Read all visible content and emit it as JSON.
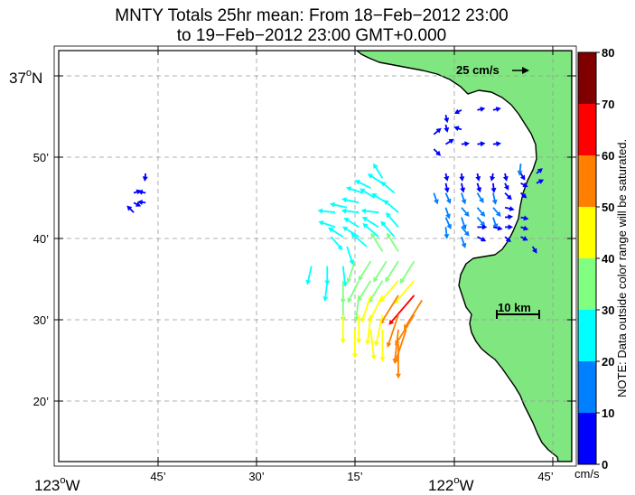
{
  "title_line1": "MNTY Totals 25hr mean: From 18−Feb−2012 23:00",
  "title_line2": "to 19−Feb−2012 23:00 GMT+0.000",
  "reference_vector_label": "25 cm/s",
  "scale_bar_label": "10 km",
  "colorbar": {
    "ticks": [
      "0",
      "10",
      "20",
      "30",
      "40",
      "50",
      "60",
      "70",
      "80"
    ],
    "unit": "cm/s",
    "note": "NOTE: Data outside color range will be saturated.",
    "colors": [
      "#0000ff",
      "#0080ff",
      "#00ffff",
      "#80ff80",
      "#ffff00",
      "#ff8000",
      "#ff0000",
      "#800000"
    ]
  },
  "y_axis_labels": {
    "lat37": "37",
    "deg": "o",
    "north": "N",
    "min50": "50’",
    "min40": "40’",
    "min30": "30’",
    "min20": "20’"
  },
  "x_axis_labels": {
    "lon123": "123",
    "deg": "o",
    "west": "W",
    "min45": "45’",
    "min30": "30’",
    "min15": "15’",
    "lon122": "122",
    "min45b": "45’"
  },
  "colors": {
    "land": "#80e680",
    "coast": "#000000",
    "grid": "#999999"
  },
  "chart_data": {
    "type": "vector-field",
    "x_unit": "longitude (deg W)",
    "y_unit": "latitude (deg N)",
    "xlim": [
      -123.0,
      -121.7
    ],
    "ylim": [
      37.2,
      37.05
    ],
    "speed_unit": "cm/s",
    "vectors": [
      [
        -122.78,
        36.8,
        -0.1,
        -0.9,
        5
      ],
      [
        -122.81,
        36.76,
        0.9,
        0.3,
        5
      ],
      [
        -122.78,
        36.76,
        -0.9,
        0.2,
        5
      ],
      [
        -122.81,
        36.74,
        0.8,
        -0.4,
        5
      ],
      [
        -122.78,
        36.74,
        -0.9,
        0.1,
        5
      ],
      [
        -122.81,
        36.72,
        -0.7,
        0.7,
        8
      ],
      [
        -122.02,
        36.92,
        0.2,
        -0.9,
        5
      ],
      [
        -121.98,
        36.93,
        -0.8,
        -0.4,
        5
      ],
      [
        -121.94,
        36.93,
        0.9,
        0.2,
        5
      ],
      [
        -121.9,
        36.93,
        0.9,
        0.2,
        5
      ],
      [
        -122.02,
        36.9,
        0.2,
        -0.9,
        5
      ],
      [
        -121.98,
        36.89,
        -0.9,
        0.3,
        5
      ],
      [
        -122.05,
        36.88,
        0.7,
        0.6,
        8
      ],
      [
        -122.02,
        36.86,
        0.8,
        0.5,
        8
      ],
      [
        -121.98,
        36.86,
        0.9,
        0.1,
        5
      ],
      [
        -121.94,
        36.86,
        0.9,
        0.1,
        5
      ],
      [
        -121.9,
        36.86,
        0.9,
        0.1,
        5
      ],
      [
        -122.05,
        36.85,
        0.7,
        -0.7,
        8
      ],
      [
        -121.83,
        36.82,
        -0.1,
        -0.9,
        12
      ],
      [
        -122.02,
        36.8,
        0.2,
        -0.9,
        5
      ],
      [
        -121.98,
        36.8,
        0.1,
        -0.9,
        5
      ],
      [
        -121.94,
        36.8,
        0.2,
        -0.9,
        5
      ],
      [
        -121.9,
        36.8,
        -0.2,
        -0.9,
        5
      ],
      [
        -121.87,
        36.8,
        0.2,
        -0.9,
        5
      ],
      [
        -121.83,
        36.8,
        0.5,
        -0.8,
        5
      ],
      [
        -121.79,
        36.8,
        0.7,
        0.6,
        5
      ],
      [
        -122.02,
        36.78,
        0.2,
        -0.9,
        8
      ],
      [
        -121.98,
        36.78,
        0.2,
        -0.9,
        8
      ],
      [
        -121.94,
        36.78,
        0.3,
        -0.9,
        8
      ],
      [
        -121.9,
        36.78,
        0.1,
        -0.9,
        8
      ],
      [
        -121.87,
        36.78,
        0.4,
        -0.8,
        5
      ],
      [
        -121.83,
        36.78,
        0.8,
        -0.4,
        5
      ],
      [
        -121.79,
        36.78,
        0.8,
        0.4,
        5
      ],
      [
        -122.05,
        36.76,
        0.3,
        -0.9,
        12
      ],
      [
        -122.02,
        36.76,
        0.4,
        -0.9,
        12
      ],
      [
        -121.98,
        36.76,
        0.3,
        -0.9,
        12
      ],
      [
        -121.94,
        36.76,
        0.5,
        -0.8,
        12
      ],
      [
        -121.9,
        36.76,
        0.2,
        -0.9,
        12
      ],
      [
        -121.87,
        36.76,
        0.6,
        -0.6,
        8
      ],
      [
        -121.83,
        36.76,
        0.7,
        -0.6,
        5
      ],
      [
        -122.02,
        36.73,
        0.3,
        -0.9,
        12
      ],
      [
        -121.98,
        36.73,
        0.6,
        -0.7,
        12
      ],
      [
        -121.94,
        36.73,
        0.6,
        -0.7,
        12
      ],
      [
        -121.9,
        36.73,
        0.6,
        -0.7,
        12
      ],
      [
        -121.87,
        36.73,
        0.9,
        -0.2,
        8
      ],
      [
        -122.02,
        36.71,
        0.4,
        -0.9,
        14
      ],
      [
        -121.98,
        36.71,
        0.3,
        -0.9,
        14
      ],
      [
        -121.94,
        36.71,
        0.6,
        -0.7,
        12
      ],
      [
        -121.9,
        36.71,
        0.3,
        -0.9,
        12
      ],
      [
        -121.87,
        36.71,
        0.9,
        0.1,
        5
      ],
      [
        -121.83,
        36.71,
        0.9,
        -0.2,
        5
      ],
      [
        -122.02,
        36.69,
        0.1,
        -0.9,
        12
      ],
      [
        -121.98,
        36.69,
        0.6,
        -0.7,
        12
      ],
      [
        -121.94,
        36.69,
        0.9,
        0.0,
        8
      ],
      [
        -121.9,
        36.69,
        0.9,
        -0.2,
        8
      ],
      [
        -121.87,
        36.69,
        0.9,
        0.0,
        5
      ],
      [
        -121.83,
        36.69,
        0.9,
        -0.3,
        5
      ],
      [
        -121.98,
        36.67,
        0.3,
        -0.9,
        12
      ],
      [
        -121.94,
        36.67,
        0.8,
        -0.4,
        8
      ],
      [
        -121.87,
        36.67,
        0.7,
        -0.6,
        5
      ],
      [
        -121.83,
        36.67,
        0.8,
        -0.4,
        5
      ],
      [
        -121.8,
        36.65,
        0.5,
        -0.8,
        5
      ],
      [
        -122.18,
        36.79,
        -0.5,
        0.8,
        22
      ],
      [
        -122.18,
        36.78,
        -0.8,
        0.5,
        22
      ],
      [
        -122.21,
        36.77,
        -0.8,
        0.4,
        22
      ],
      [
        -122.23,
        36.76,
        -0.9,
        0.3,
        22
      ],
      [
        -122.15,
        36.76,
        -0.7,
        0.6,
        22
      ],
      [
        -122.2,
        36.75,
        -0.8,
        0.5,
        22
      ],
      [
        -122.17,
        36.74,
        -0.8,
        0.5,
        22
      ],
      [
        -122.24,
        36.74,
        -0.9,
        0.2,
        22
      ],
      [
        -122.27,
        36.73,
        -0.9,
        0.2,
        22
      ],
      [
        -122.3,
        36.72,
        -0.9,
        0.1,
        22
      ],
      [
        -122.19,
        36.72,
        -0.9,
        0.1,
        22
      ],
      [
        -122.24,
        36.72,
        -0.9,
        0.1,
        22
      ],
      [
        -122.14,
        36.72,
        -0.7,
        0.6,
        25
      ],
      [
        -122.3,
        36.69,
        -0.9,
        0.3,
        22
      ],
      [
        -122.24,
        36.69,
        -0.8,
        0.5,
        22
      ],
      [
        -122.19,
        36.69,
        -0.8,
        0.5,
        25
      ],
      [
        -122.14,
        36.69,
        -0.6,
        0.7,
        25
      ],
      [
        -122.31,
        36.67,
        0.6,
        -0.7,
        22
      ],
      [
        -122.28,
        36.67,
        -0.8,
        0.5,
        22
      ],
      [
        -122.24,
        36.67,
        -0.8,
        0.5,
        25
      ],
      [
        -122.19,
        36.67,
        -0.7,
        0.6,
        28
      ],
      [
        -122.15,
        36.67,
        -0.6,
        0.7,
        28
      ],
      [
        -122.27,
        36.65,
        0.3,
        -0.9,
        25
      ],
      [
        -122.22,
        36.65,
        -0.7,
        0.6,
        28
      ],
      [
        -122.18,
        36.64,
        -0.5,
        0.8,
        30
      ],
      [
        -122.14,
        36.64,
        -0.5,
        0.8,
        30
      ],
      [
        -122.36,
        36.61,
        -0.2,
        -0.9,
        25
      ],
      [
        -122.32,
        36.61,
        0.0,
        -0.9,
        25
      ],
      [
        -122.28,
        36.61,
        0.1,
        -0.9,
        28
      ],
      [
        -122.25,
        36.62,
        -0.3,
        -0.9,
        32
      ],
      [
        -122.21,
        36.62,
        -0.5,
        -0.8,
        32
      ],
      [
        -122.17,
        36.62,
        -0.5,
        -0.8,
        35
      ],
      [
        -122.14,
        36.62,
        -0.5,
        -0.8,
        35
      ],
      [
        -122.1,
        36.62,
        -0.5,
        -0.8,
        38
      ],
      [
        -122.32,
        36.58,
        -0.1,
        -0.9,
        28
      ],
      [
        -122.28,
        36.58,
        0.0,
        -0.9,
        32
      ],
      [
        -122.24,
        36.58,
        -0.4,
        -0.8,
        35
      ],
      [
        -122.21,
        36.58,
        -0.5,
        -0.8,
        35
      ],
      [
        -122.18,
        36.58,
        -0.5,
        -0.8,
        38
      ],
      [
        -122.14,
        36.58,
        -0.6,
        -0.7,
        42
      ],
      [
        -122.1,
        36.58,
        -0.6,
        -0.7,
        45
      ],
      [
        -122.28,
        36.55,
        0.0,
        -0.9,
        38
      ],
      [
        -122.24,
        36.55,
        -0.1,
        -0.9,
        38
      ],
      [
        -122.21,
        36.55,
        -0.3,
        -0.9,
        42
      ],
      [
        -122.18,
        36.55,
        -0.4,
        -0.8,
        45
      ],
      [
        -122.14,
        36.55,
        -0.5,
        -0.8,
        52
      ],
      [
        -122.1,
        36.55,
        -0.6,
        -0.7,
        60
      ],
      [
        -122.08,
        36.54,
        -0.5,
        -0.8,
        52
      ],
      [
        -122.28,
        36.51,
        0.0,
        -0.9,
        42
      ],
      [
        -122.24,
        36.51,
        0.0,
        -0.9,
        42
      ],
      [
        -122.21,
        36.51,
        -0.1,
        -0.9,
        45
      ],
      [
        -122.18,
        36.51,
        -0.2,
        -0.9,
        48
      ],
      [
        -122.14,
        36.51,
        -0.3,
        -0.9,
        52
      ],
      [
        -122.1,
        36.51,
        -0.5,
        -0.8,
        55
      ],
      [
        -122.25,
        36.48,
        0.0,
        -0.9,
        42
      ],
      [
        -122.21,
        36.48,
        0.1,
        -0.9,
        45
      ],
      [
        -122.18,
        36.48,
        0.0,
        -0.9,
        48
      ],
      [
        -122.14,
        36.48,
        -0.1,
        -0.9,
        52
      ],
      [
        -122.12,
        36.48,
        -0.3,
        -0.9,
        55
      ],
      [
        -122.14,
        36.45,
        0.0,
        -0.9,
        52
      ]
    ]
  }
}
